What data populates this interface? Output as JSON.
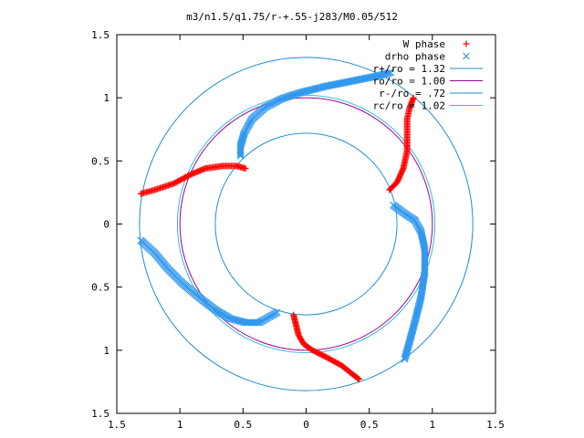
{
  "chart_data": {
    "type": "scatter",
    "title": "m3/n1.5/q1.75/r-+.55-j283/M0.05/512",
    "xlim": [
      -1.5,
      1.5
    ],
    "ylim": [
      -1.5,
      1.5
    ],
    "x_ticks": [
      -1.5,
      -1,
      -0.5,
      0,
      0.5,
      1,
      1.5
    ],
    "y_ticks": [
      -1.5,
      -1,
      -0.5,
      0,
      0.5,
      1,
      1.5
    ],
    "x_tick_labels": [
      "1.5",
      "1",
      "0.5",
      "0",
      "0.5",
      "1",
      "1.5"
    ],
    "y_tick_labels": [
      "1.5",
      "1",
      "0.5",
      "0",
      "0.5",
      "1",
      "1.5"
    ],
    "legend_position": "top-right",
    "colors": {
      "w_phase": "#ff0000",
      "drho_phase": "#3399ee",
      "r_plus": "#1f8fd1",
      "ro": "#990099",
      "r_minus": "#1f8fd1",
      "rc": "#33bbdd",
      "border": "#000000"
    },
    "circles": [
      {
        "name": "r+/ro = 1.32",
        "radius": 1.32,
        "color_key": "r_plus"
      },
      {
        "name": "ro/ro = 1.00",
        "radius": 1.0,
        "color_key": "ro"
      },
      {
        "name": "r-/ro = .72",
        "radius": 0.72,
        "color_key": "r_minus"
      },
      {
        "name": "rc/ro = 1.02",
        "radius": 1.02,
        "color_key": "rc"
      }
    ],
    "series": [
      {
        "name": "W phase",
        "marker": "plus",
        "color_key": "w_phase",
        "arms": [
          [
            [
              -1.31,
              0.24
            ],
            [
              -1.2,
              0.27
            ],
            [
              -1.05,
              0.32
            ],
            [
              -0.92,
              0.39
            ],
            [
              -0.8,
              0.44
            ],
            [
              -0.66,
              0.46
            ],
            [
              -0.55,
              0.46
            ],
            [
              -0.48,
              0.44
            ]
          ],
          [
            [
              -0.1,
              -0.72
            ],
            [
              -0.08,
              -0.8
            ],
            [
              -0.06,
              -0.88
            ],
            [
              -0.02,
              -0.95
            ],
            [
              0.05,
              -1.0
            ],
            [
              0.15,
              -1.05
            ],
            [
              0.28,
              -1.12
            ],
            [
              0.38,
              -1.2
            ],
            [
              0.42,
              -1.23
            ]
          ],
          [
            [
              0.66,
              0.27
            ],
            [
              0.72,
              0.33
            ],
            [
              0.77,
              0.44
            ],
            [
              0.8,
              0.58
            ],
            [
              0.8,
              0.72
            ],
            [
              0.8,
              0.83
            ],
            [
              0.82,
              0.92
            ],
            [
              0.85,
              1.0
            ]
          ]
        ]
      },
      {
        "name": "drho phase",
        "marker": "cross",
        "color_key": "drho_phase",
        "arms": [
          [
            [
              -1.31,
              -0.13
            ],
            [
              -1.2,
              -0.23
            ],
            [
              -1.1,
              -0.35
            ],
            [
              -0.98,
              -0.47
            ],
            [
              -0.85,
              -0.58
            ],
            [
              -0.72,
              -0.68
            ],
            [
              -0.6,
              -0.75
            ],
            [
              -0.48,
              -0.78
            ],
            [
              -0.37,
              -0.78
            ],
            [
              -0.3,
              -0.74
            ],
            [
              -0.23,
              -0.7
            ]
          ],
          [
            [
              -0.52,
              0.54
            ],
            [
              -0.52,
              0.62
            ],
            [
              -0.49,
              0.72
            ],
            [
              -0.43,
              0.83
            ],
            [
              -0.33,
              0.92
            ],
            [
              -0.2,
              0.99
            ],
            [
              -0.05,
              1.04
            ],
            [
              0.15,
              1.09
            ],
            [
              0.35,
              1.13
            ],
            [
              0.55,
              1.17
            ],
            [
              0.67,
              1.2
            ]
          ],
          [
            [
              0.69,
              0.15
            ],
            [
              0.77,
              0.09
            ],
            [
              0.86,
              0.03
            ],
            [
              0.91,
              -0.06
            ],
            [
              0.94,
              -0.2
            ],
            [
              0.94,
              -0.38
            ],
            [
              0.91,
              -0.58
            ],
            [
              0.86,
              -0.78
            ],
            [
              0.82,
              -0.93
            ],
            [
              0.78,
              -1.07
            ]
          ]
        ]
      }
    ]
  }
}
